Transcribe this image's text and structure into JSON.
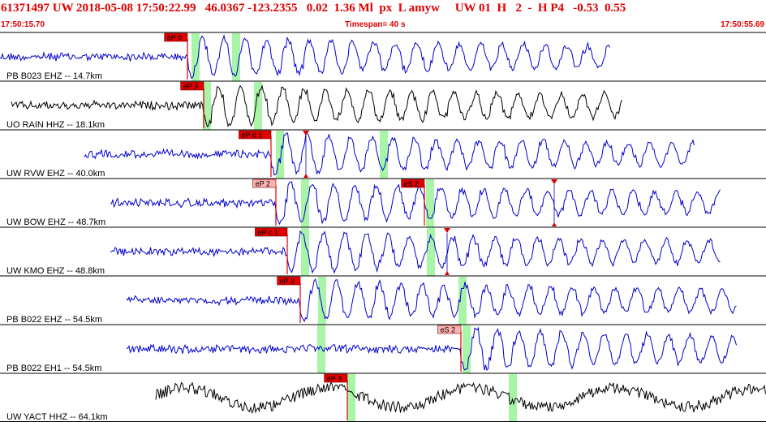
{
  "header": {
    "title": "61371497 UW 2018-05-08 17:50:22.99   46.0367 -123.2355   0.02  1.36 Ml  px  L amyw     UW 01  H   2  -  H P4   -0.53  0.55",
    "start_time": "17:50:15.70",
    "timespan": "Timespan=  40 s",
    "end_time": "17:50:55.69"
  },
  "colors": {
    "header_red": "#e00000",
    "trace_blue": "#0000cc",
    "trace_black": "#000000",
    "pick_red": "#e00000",
    "pick_pink": "#ffb0b0",
    "window_green": "#a8f5a8"
  },
  "traces": [
    {
      "label": "PB B023 EHZ -- 14.7km",
      "color": "blue",
      "picks": [
        {
          "text": "eP 0",
          "style": "red"
        }
      ]
    },
    {
      "label": "UO RAIN HHZ -- 18.1km",
      "color": "black",
      "picks": [
        {
          "text": "eP 3",
          "style": "red"
        }
      ]
    },
    {
      "label": "UW RVW EHZ -- 40.0km",
      "color": "blue",
      "picks": [
        {
          "text": "eP d 1",
          "style": "red"
        }
      ]
    },
    {
      "label": "UW BOW EHZ -- 48.7km",
      "color": "blue",
      "picks": [
        {
          "text": "eP 2",
          "style": "pink"
        },
        {
          "text": "eS 2",
          "style": "red"
        }
      ]
    },
    {
      "label": "UW KMO EHZ -- 48.8km",
      "color": "blue",
      "picks": [
        {
          "text": "eP c 1",
          "style": "red"
        }
      ]
    },
    {
      "label": "PB B022 EHZ -- 54.5km",
      "color": "blue",
      "picks": [
        {
          "text": "eP 2",
          "style": "red"
        }
      ]
    },
    {
      "label": "PB B022 EH1 -- 54.5km",
      "color": "blue",
      "picks": [
        {
          "text": "eS 2",
          "style": "pink"
        }
      ]
    },
    {
      "label": "UW YACT HHZ -- 64.1km",
      "color": "black",
      "picks": [
        {
          "text": "eP 3",
          "style": "red"
        }
      ]
    }
  ]
}
